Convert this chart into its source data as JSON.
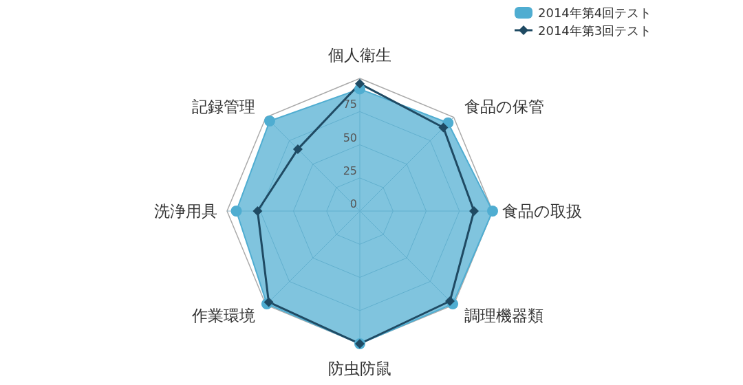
{
  "chart_data": {
    "type": "radar",
    "categories": [
      "個人衛生",
      "食品の保管",
      "食品の取扱",
      "調理機器類",
      "防虫防鼠",
      "作業環境",
      "洗浄用具",
      "記録管理"
    ],
    "series": [
      {
        "name": "2014年第4回テスト",
        "color": "#4fadd1",
        "marker": "circle",
        "values": [
          92,
          94,
          100,
          99,
          100,
          99,
          93,
          96
        ]
      },
      {
        "name": "2014年第3回テスト",
        "color": "#1f4a63",
        "marker": "diamond",
        "values": [
          96,
          89,
          86,
          96,
          100,
          97,
          77,
          66
        ]
      }
    ],
    "ylim": [
      0,
      100
    ],
    "yticks": [
      0,
      25,
      50,
      75
    ],
    "grid": true,
    "legend": "top right"
  }
}
